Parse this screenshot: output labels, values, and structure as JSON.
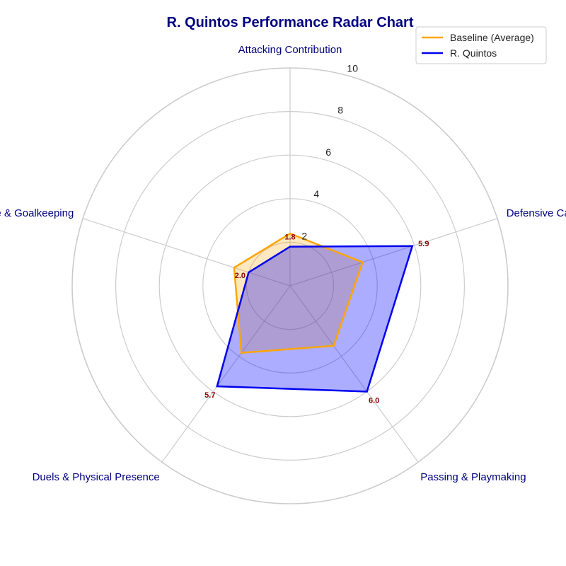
{
  "chart_data": {
    "type": "radar",
    "title": "R. Quintos Performance Radar Chart",
    "categories": [
      "Attacking Contribution",
      "Defensive Capability",
      "Passing & Playmaking",
      "Duels & Physical Presence",
      "Discipline & Goalkeeping"
    ],
    "rlim": [
      0,
      10
    ],
    "rticks": [
      2,
      4,
      6,
      8,
      10
    ],
    "grid": true,
    "legend_placement": "top-right",
    "series": [
      {
        "name": "Baseline (Average)",
        "values": [
          2.4,
          3.5,
          3.4,
          3.8,
          2.7
        ],
        "color": "#FFA500",
        "fill": "#FFA500"
      },
      {
        "name": "R. Quintos",
        "values": [
          1.8,
          5.9,
          6.0,
          5.7,
          2.0
        ],
        "color": "#0000EE",
        "fill": "#0000FF",
        "data_labels": [
          "1.8",
          "5.9",
          "6.0",
          "5.7",
          "2.0"
        ]
      }
    ]
  }
}
